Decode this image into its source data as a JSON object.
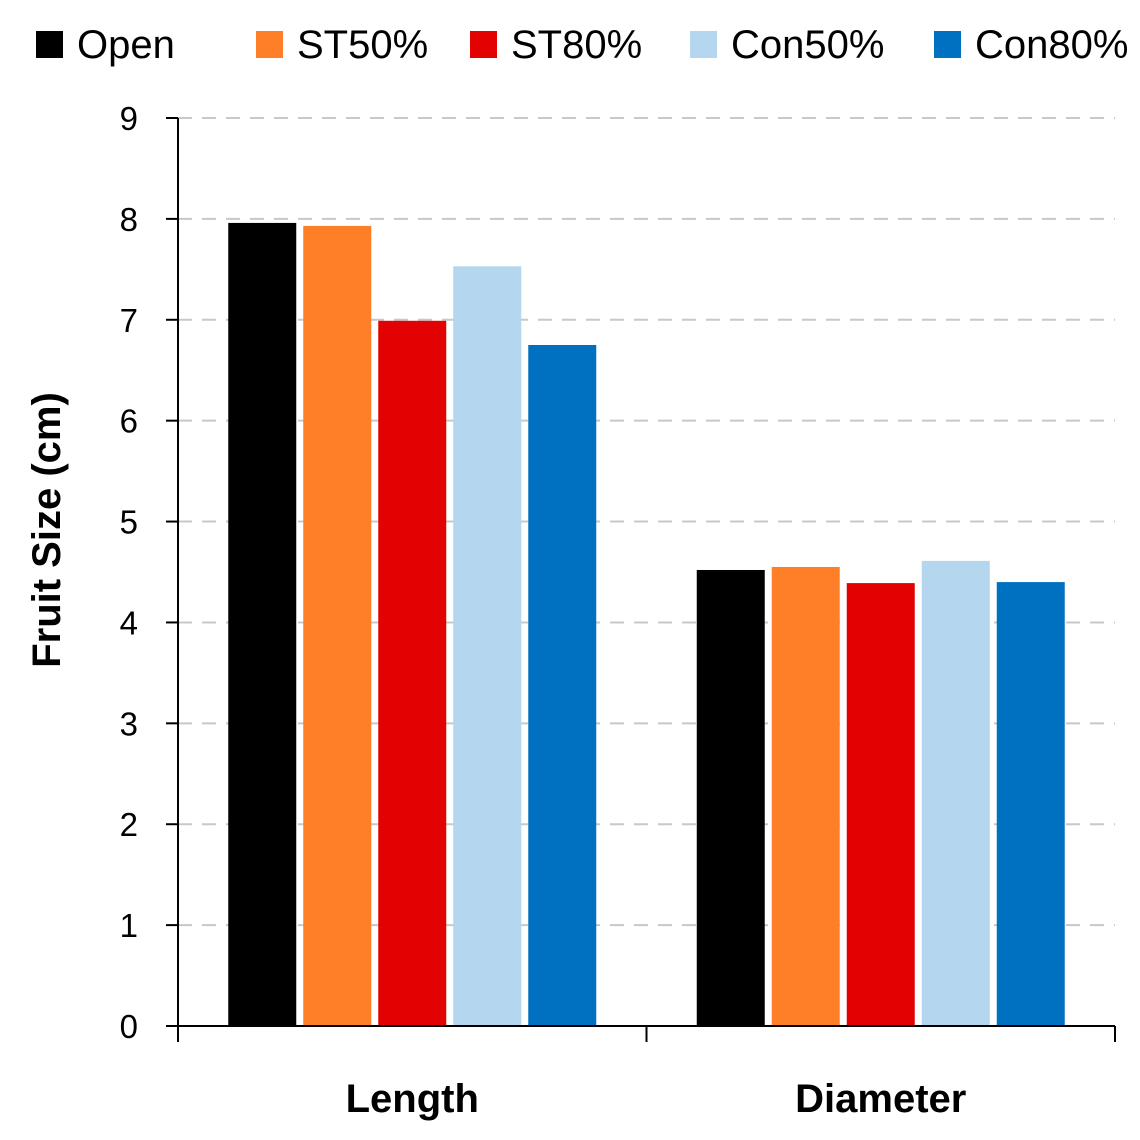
{
  "chart_data": {
    "type": "bar",
    "title": "",
    "xlabel": "",
    "ylabel": "Fruit Size (cm)",
    "ylim": [
      0,
      9
    ],
    "yticks": [
      "0",
      "1",
      "2",
      "3",
      "4",
      "5",
      "6",
      "7",
      "8",
      "9"
    ],
    "grid": "horizontal dashed",
    "legend_position": "top",
    "categories": [
      "Length",
      "Diameter"
    ],
    "series": [
      {
        "name": "Open",
        "color": "#000000",
        "values": [
          7.96,
          4.52
        ]
      },
      {
        "name": "ST50%",
        "color": "#fe7f27",
        "values": [
          7.93,
          4.55
        ]
      },
      {
        "name": "ST80%",
        "color": "#e30202",
        "values": [
          6.99,
          4.39
        ]
      },
      {
        "name": "Con50%",
        "color": "#b4d6ee",
        "values": [
          7.53,
          4.61
        ]
      },
      {
        "name": "Con80%",
        "color": "#0070c1",
        "values": [
          6.75,
          4.4
        ]
      }
    ]
  }
}
